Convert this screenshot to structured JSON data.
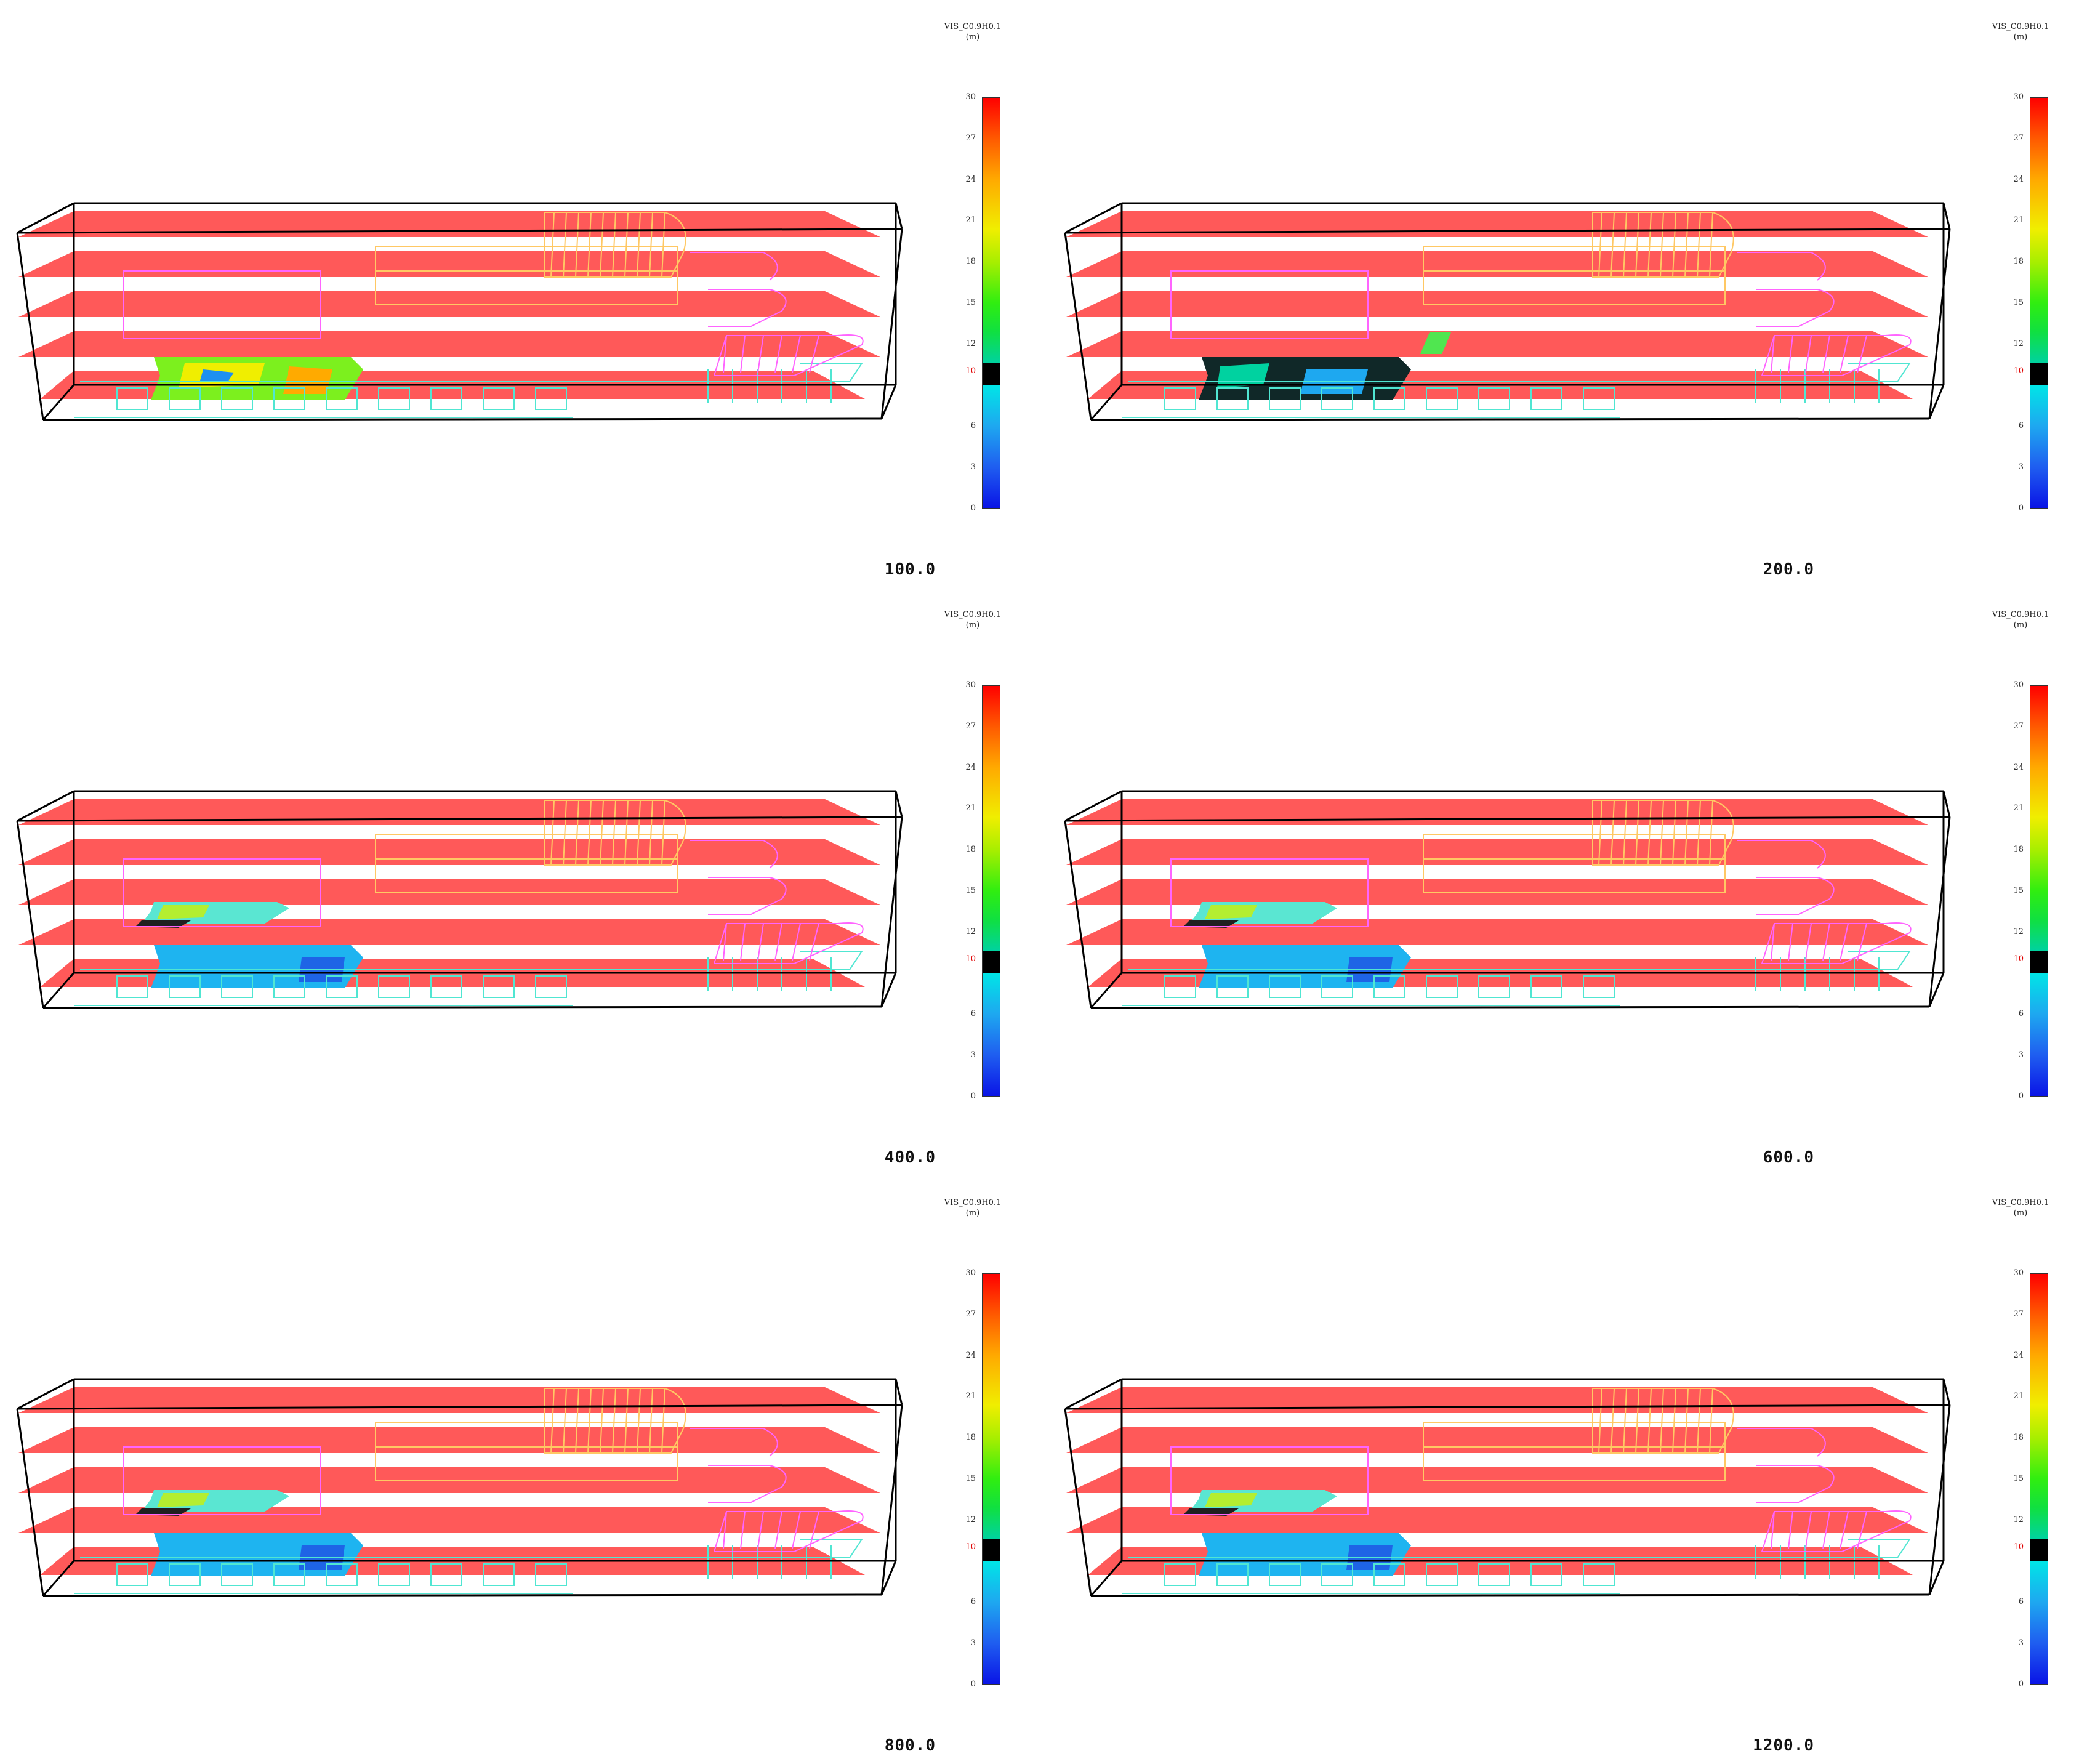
{
  "colorbar": {
    "title_line1": "VIS_C0.9H0.1",
    "title_line2": "(m)",
    "ticks": [
      "30",
      "27",
      "24",
      "21",
      "18",
      "15",
      "12",
      "10",
      "6",
      "3",
      "0"
    ],
    "tick_values": [
      30,
      27,
      24,
      21,
      18,
      15,
      12,
      10,
      6,
      3,
      0
    ],
    "highlight_value": "10",
    "range": [
      0,
      30
    ],
    "colors": {
      "high": "#ff0000",
      "mid": "#30ee10",
      "low": "#0a14e6",
      "cutoff_band": "#000000"
    }
  },
  "scene_colors": {
    "slice_plane": "#ff2a2a",
    "box_edge": "#000000",
    "upper_structure": "#ffc864",
    "mid_structure": "#ff64ff",
    "lower_structure": "#50e6d2"
  },
  "panels": [
    {
      "time": "100.0",
      "state": "initial"
    },
    {
      "time": "200.0",
      "state": "dark"
    },
    {
      "time": "400.0",
      "state": "spread"
    },
    {
      "time": "600.0",
      "state": "spread"
    },
    {
      "time": "800.0",
      "state": "spread"
    },
    {
      "time": "1200.0",
      "state": "spread"
    }
  ]
}
